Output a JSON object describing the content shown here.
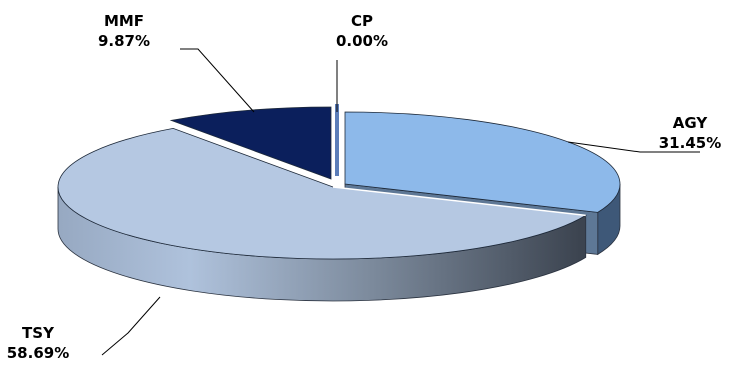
{
  "chart_data": {
    "type": "pie",
    "style": "3d-exploded",
    "title": "",
    "slices": [
      {
        "name": "AGY",
        "value": 31.45,
        "label": "31.45%",
        "color": "#8DB9EA"
      },
      {
        "name": "TSY",
        "value": 58.69,
        "label": "58.69%",
        "color": "#B5C8E2"
      },
      {
        "name": "MMF",
        "value": 9.87,
        "label": "9.87%",
        "color": "#0B1F5C"
      },
      {
        "name": "CP",
        "value": 0.0,
        "label": "0.00%",
        "color": "#5B7DB8"
      }
    ]
  }
}
